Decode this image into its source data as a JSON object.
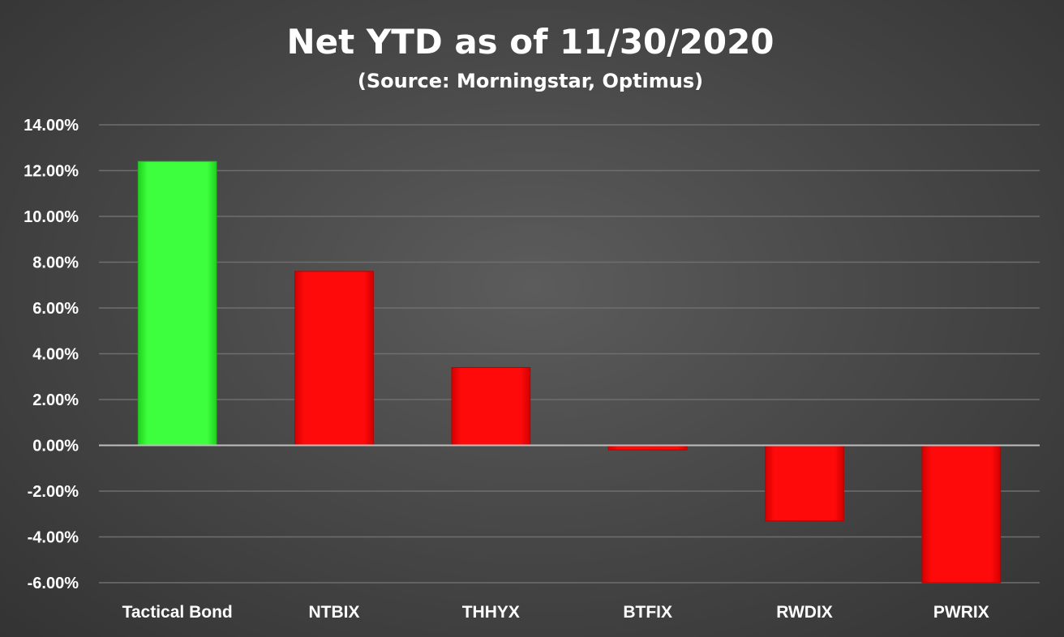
{
  "chart_data": {
    "type": "bar",
    "title": "Net YTD as of 11/30/2020",
    "subtitle": "(Source: Morningstar, Optimus)",
    "categories": [
      "Tactical Bond",
      "NTBIX",
      "THHYX",
      "BTFIX",
      "RWDIX",
      "PWRIX"
    ],
    "values": [
      12.4,
      7.6,
      3.4,
      -0.2,
      -3.3,
      -6.0
    ],
    "ylim": [
      -6,
      14
    ],
    "yticks": [
      14,
      12,
      10,
      8,
      6,
      4,
      2,
      0,
      -2,
      -4,
      -6
    ],
    "ytick_labels": [
      "14.00%",
      "12.00%",
      "10.00%",
      "8.00%",
      "6.00%",
      "4.00%",
      "2.00%",
      "0.00%",
      "-2.00%",
      "-4.00%",
      "-6.00%"
    ],
    "grid": true,
    "colors": {
      "highlight": "#33ff33",
      "default": "#ff0000"
    }
  }
}
